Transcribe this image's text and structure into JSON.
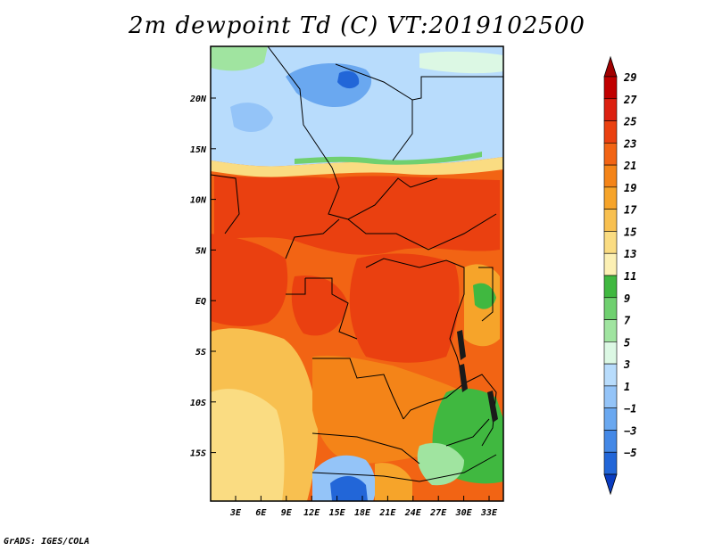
{
  "title": "2m dewpoint Td (C) VT:2019102500",
  "credit": "GrADS: IGES/COLA",
  "lat_labels": [
    "20N",
    "15N",
    "10N",
    "5N",
    "EQ",
    "5S",
    "10S",
    "15S"
  ],
  "lon_labels": [
    "3E",
    "6E",
    "9E",
    "12E",
    "15E",
    "18E",
    "21E",
    "24E",
    "27E",
    "30E",
    "33E"
  ],
  "colorbar": {
    "labels": [
      "29",
      "27",
      "25",
      "23",
      "21",
      "19",
      "17",
      "15",
      "13",
      "11",
      "9",
      "7",
      "5",
      "3",
      "1",
      "−1",
      "−3",
      "−5"
    ],
    "colors": [
      "#c00000",
      "#dc2010",
      "#ea4010",
      "#f26414",
      "#f48418",
      "#f6a42a",
      "#f8c050",
      "#fadc82",
      "#fcf0b4",
      "#40b840",
      "#70d070",
      "#a0e4a0",
      "#dcf8e4",
      "#b8dcfc",
      "#94c4f8",
      "#6aa8f0",
      "#4488e6",
      "#2266d8",
      "#1246c8"
    ],
    "top_color": "#a00000",
    "bottom_color": "#0a3cc0"
  }
}
